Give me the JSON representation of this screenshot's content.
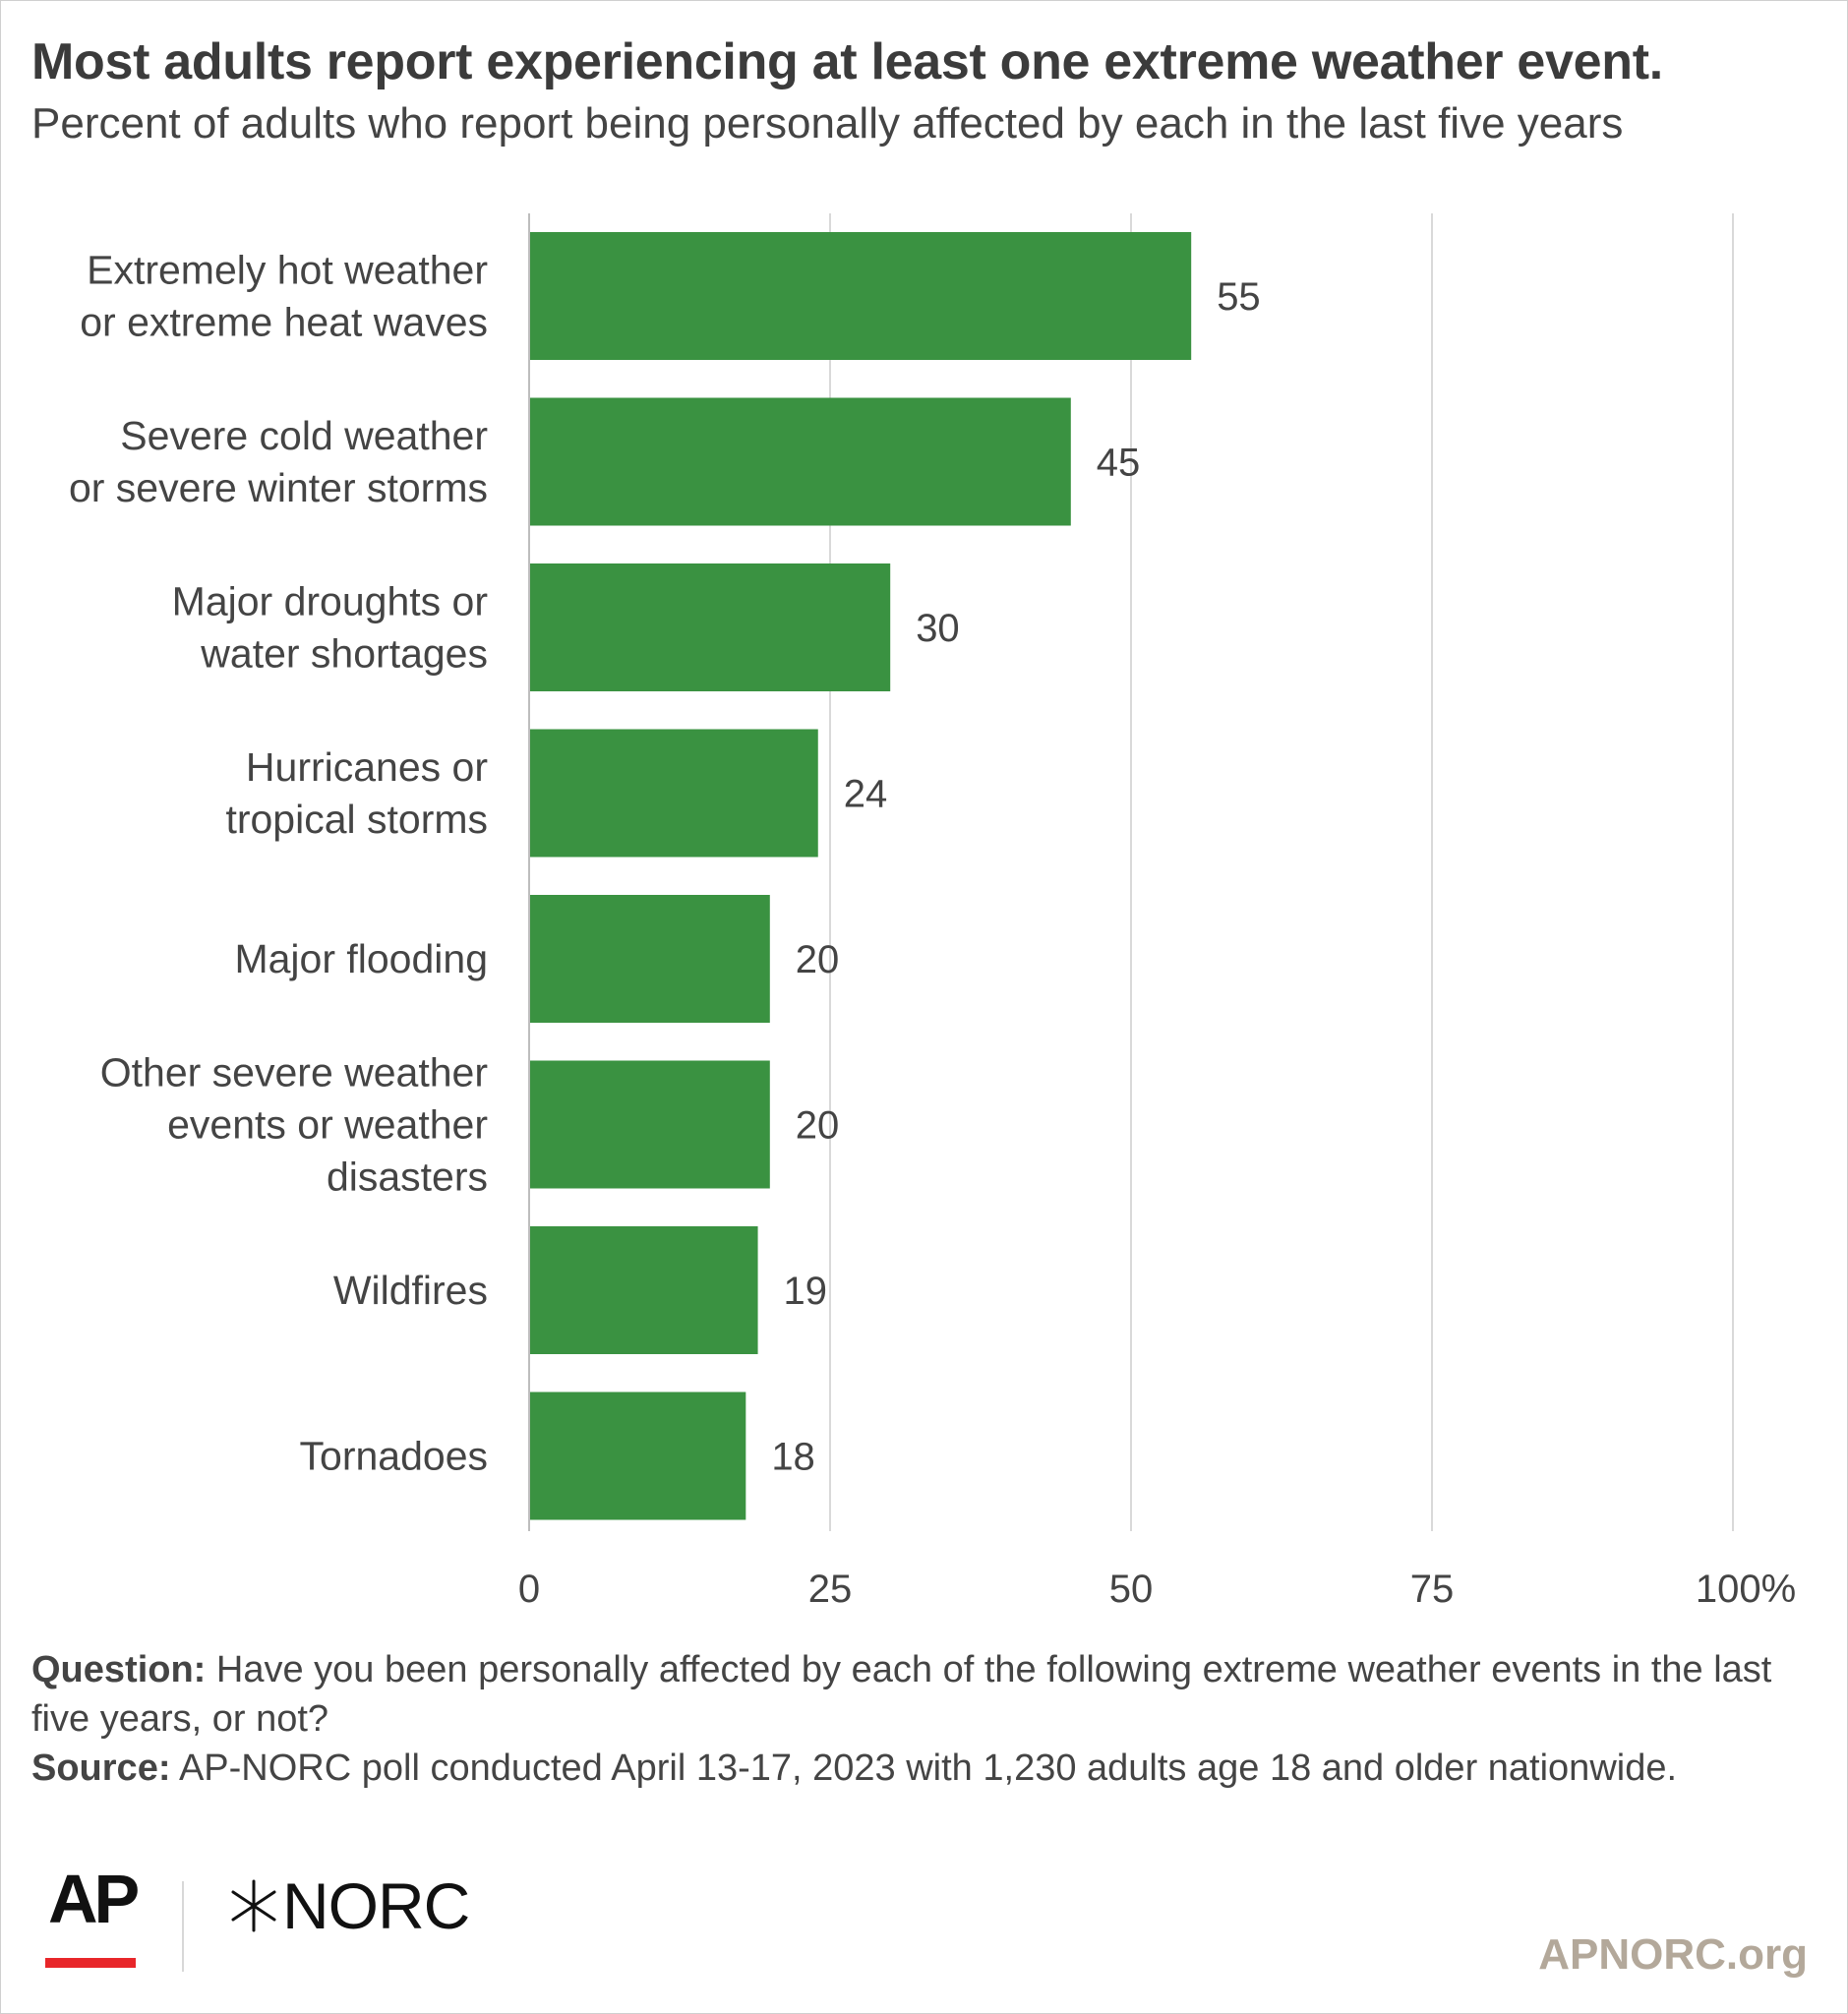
{
  "header": {
    "title": "Most adults report experiencing at least one extreme weather event.",
    "subtitle": "Percent of adults who report being personally affected by each in the last five years"
  },
  "chart_data": {
    "type": "bar",
    "orientation": "horizontal",
    "categories": [
      [
        "Extremely hot weather",
        "or extreme heat waves"
      ],
      [
        "Severe cold weather",
        "or severe winter storms"
      ],
      [
        "Major droughts or",
        "water shortages"
      ],
      [
        "Hurricanes or",
        "tropical storms"
      ],
      [
        "Major flooding"
      ],
      [
        "Other severe weather",
        "events or weather",
        "disasters"
      ],
      [
        "Wildfires"
      ],
      [
        "Tornadoes"
      ]
    ],
    "values": [
      55,
      45,
      30,
      24,
      20,
      20,
      19,
      18
    ],
    "data_labels": [
      "55",
      "45",
      "30",
      "24",
      "20",
      "20",
      "19",
      "18"
    ],
    "xlim": [
      0,
      100
    ],
    "xticks": [
      0,
      25,
      50,
      75,
      100
    ],
    "xtick_labels": [
      "0",
      "25",
      "50",
      "75",
      "100%"
    ],
    "grid": true,
    "bar_color": "#3a9241"
  },
  "footer": {
    "question_label": "Question:",
    "question_text": " Have you been personally affected by each of the following extreme weather events in the last five years, or not?",
    "source_label": "Source:",
    "source_text": " AP-NORC poll conducted April 13-17, 2023 with 1,230 adults age 18 and older nationwide."
  },
  "branding": {
    "ap_logo": "AP",
    "norc_logo": "NORC",
    "norc_icon": "asterisk-star-icon",
    "site": "APNORC.org",
    "ap_accent": "#e8262a",
    "site_color": "#b3a89a"
  }
}
